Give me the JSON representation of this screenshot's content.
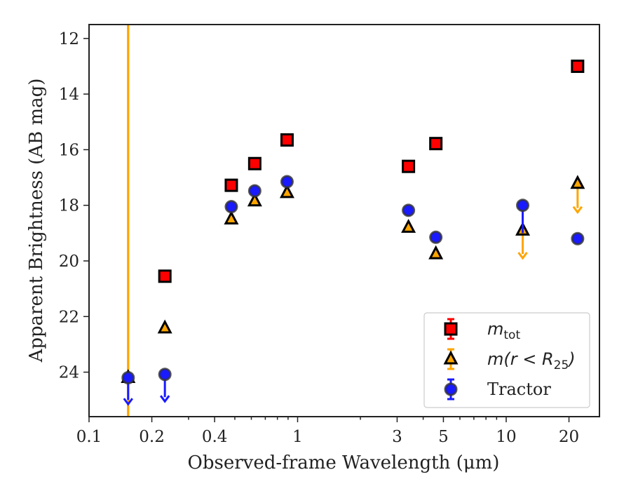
{
  "chart_data": {
    "type": "scatter",
    "title": "",
    "xlabel": "Observed-frame Wavelength (μm)",
    "ylabel": "Apparent Brightness (AB mag)",
    "xscale": "log",
    "xlim": [
      0.1,
      28
    ],
    "ylim": [
      25.6,
      11.5
    ],
    "x_ticks": [
      0.1,
      0.2,
      0.4,
      1,
      3,
      5,
      10,
      20
    ],
    "x_tick_labels": [
      "0.1",
      "0.2",
      "0.4",
      "1",
      "3",
      "5",
      "10",
      "20"
    ],
    "y_ticks": [
      12,
      14,
      16,
      18,
      20,
      22,
      24
    ],
    "y_tick_labels": [
      "12",
      "14",
      "16",
      "18",
      "20",
      "22",
      "24"
    ],
    "grid": false,
    "legend_position": "lower-right",
    "vertical_lines": [
      {
        "x": 0.154,
        "color": "#ffa500"
      }
    ],
    "series": [
      {
        "name": "m_tot",
        "legend_label": {
          "main": "m",
          "sub": "tot"
        },
        "marker": "square",
        "fill": "#ff0000",
        "edge": "#000000",
        "errcolor": "#ff0000",
        "points": [
          {
            "x": 0.231,
            "y": 20.55
          },
          {
            "x": 0.481,
            "y": 17.28
          },
          {
            "x": 0.623,
            "y": 16.5
          },
          {
            "x": 0.89,
            "y": 15.65
          },
          {
            "x": 3.4,
            "y": 16.6
          },
          {
            "x": 4.6,
            "y": 15.78
          },
          {
            "x": 22.0,
            "y": 13.0
          }
        ]
      },
      {
        "name": "m(r < R_25)",
        "legend_label": {
          "main": "m(r < R",
          "sub": "25",
          "tail": ")"
        },
        "marker": "triangle",
        "fill": "#ffa500",
        "edge": "#000000",
        "errcolor": "#ffa500",
        "points": [
          {
            "x": 0.154,
            "y": 24.2,
            "fullheight": true
          },
          {
            "x": 0.231,
            "y": 22.42
          },
          {
            "x": 0.481,
            "y": 18.5
          },
          {
            "x": 0.623,
            "y": 17.85
          },
          {
            "x": 0.89,
            "y": 17.55
          },
          {
            "x": 3.4,
            "y": 18.8
          },
          {
            "x": 4.6,
            "y": 19.75
          },
          {
            "x": 12.0,
            "y": 18.9,
            "upper_limit_to": 19.9
          },
          {
            "x": 22.0,
            "y": 17.22,
            "upper_limit_to": 18.25
          }
        ]
      },
      {
        "name": "Tractor",
        "legend_label": {
          "main": "Tractor"
        },
        "marker": "circle",
        "fill": "#1a1aff",
        "edge": "#333333",
        "errcolor": "#1a1aff",
        "points": [
          {
            "x": 0.154,
            "y": 24.2,
            "upper_limit_to": 25.15
          },
          {
            "x": 0.231,
            "y": 24.08,
            "upper_limit_to": 25.05
          },
          {
            "x": 0.481,
            "y": 18.05
          },
          {
            "x": 0.623,
            "y": 17.48
          },
          {
            "x": 0.89,
            "y": 17.15
          },
          {
            "x": 3.4,
            "y": 18.18
          },
          {
            "x": 4.6,
            "y": 19.15
          },
          {
            "x": 12.0,
            "y": 18.0,
            "errlow": 19.0
          },
          {
            "x": 22.0,
            "y": 19.2
          }
        ]
      }
    ]
  }
}
